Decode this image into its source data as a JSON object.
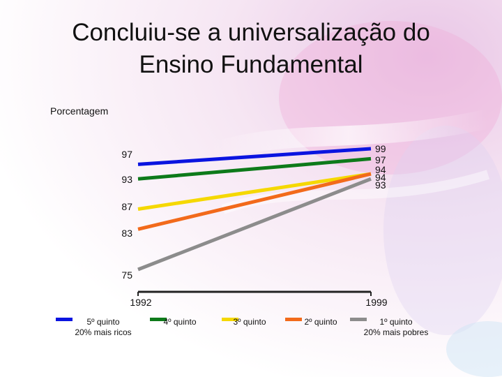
{
  "title_line1": "Concluiu-se a universalização do",
  "title_line2": "Ensino Fundamental",
  "chart_data": {
    "type": "line",
    "ylabel": "Porcentagem",
    "x": [
      "1992",
      "1999"
    ],
    "ylim": [
      70,
      102
    ],
    "series": [
      {
        "name": "5º quinto",
        "sub": "20%  mais ricos",
        "color": "#0a14e0",
        "values": [
          97,
          99
        ],
        "label_start": "97",
        "label_end": "99"
      },
      {
        "name": "4º quinto",
        "sub": "",
        "color": "#0d7a1a",
        "values": [
          93,
          97
        ],
        "label_start": "93",
        "label_end": "97"
      },
      {
        "name": "3º quinto",
        "sub": "",
        "color": "#f5d800",
        "values": [
          87,
          94
        ],
        "label_start": "87",
        "label_end": "94"
      },
      {
        "name": "2º quinto",
        "sub": "",
        "color": "#f26a1b",
        "values": [
          83,
          94
        ],
        "label_start": "83",
        "label_end": "94"
      },
      {
        "name": "1º quinto",
        "sub": "20%  mais pobres",
        "color": "#8c8c8c",
        "values": [
          75,
          93
        ],
        "label_start": "75",
        "label_end": "93"
      }
    ]
  }
}
